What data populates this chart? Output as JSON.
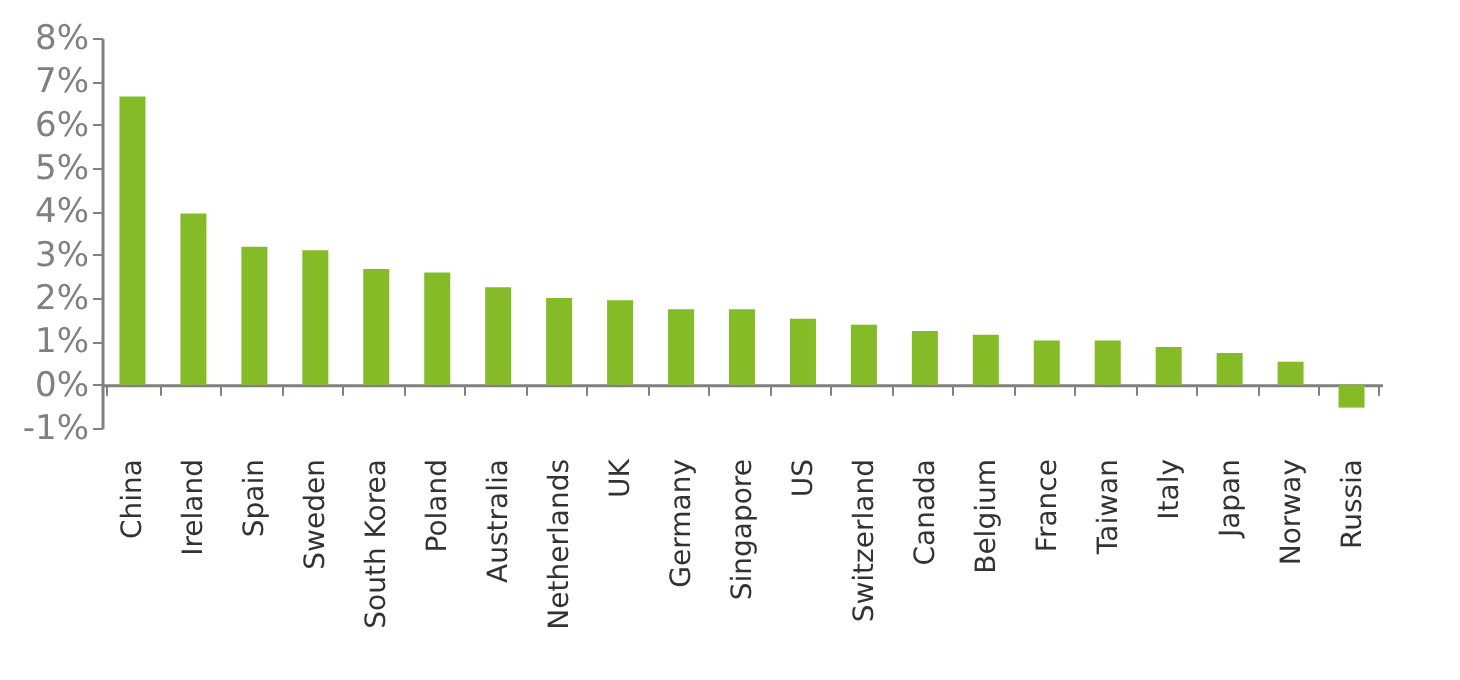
{
  "chart_data": {
    "type": "bar",
    "categories": [
      "China",
      "Ireland",
      "Spain",
      "Sweden",
      "South Korea",
      "Poland",
      "Australia",
      "Netherlands",
      "UK",
      "Germany",
      "Singapore",
      "US",
      "Switzerland",
      "Canada",
      "Belgium",
      "France",
      "Taiwan",
      "Italy",
      "Japan",
      "Norway",
      "Russia"
    ],
    "values": [
      6.65,
      3.95,
      3.18,
      3.1,
      2.67,
      2.59,
      2.25,
      2.0,
      1.95,
      1.74,
      1.74,
      1.52,
      1.38,
      1.24,
      1.15,
      1.02,
      1.02,
      0.87,
      0.73,
      0.53,
      -0.53
    ],
    "color": "#84bb27",
    "ylim": [
      -1,
      8
    ],
    "yticks": [
      {
        "value": -1,
        "label": "-1%"
      },
      {
        "value": 0,
        "label": "0%"
      },
      {
        "value": 1,
        "label": "1%"
      },
      {
        "value": 2,
        "label": "2%"
      },
      {
        "value": 3,
        "label": "3%"
      },
      {
        "value": 4,
        "label": "4%"
      },
      {
        "value": 5,
        "label": "5%"
      },
      {
        "value": 6,
        "label": "6%"
      },
      {
        "value": 7,
        "label": "7%"
      },
      {
        "value": 8,
        "label": "8%"
      }
    ]
  }
}
